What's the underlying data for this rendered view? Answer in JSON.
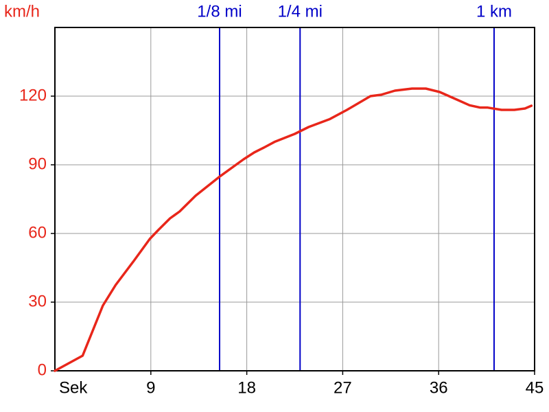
{
  "chart_data": {
    "type": "line",
    "ylabel": "km/h",
    "xlabel": "Sek",
    "xlim": [
      0,
      45
    ],
    "ylim": [
      0,
      150
    ],
    "xticks": [
      9,
      18,
      27,
      36,
      45
    ],
    "yticks": [
      0,
      30,
      60,
      90,
      120
    ],
    "grid": true,
    "series": [
      {
        "color": "#e8261a",
        "x": [
          0,
          2.6,
          4.5,
          5.7,
          7.4,
          8.9,
          9.7,
          10.8,
          11.7,
          13.2,
          15.5,
          17.7,
          18.7,
          19.6,
          20.6,
          22.5,
          23.8,
          25.8,
          27.4,
          29.6,
          30.6,
          31.9,
          33.5,
          34.8,
          36.1,
          37.7,
          38.9,
          39.9,
          40.6,
          41.9,
          43.1,
          44.1,
          44.7
        ],
        "values": [
          0,
          6.6,
          28.5,
          37.5,
          48,
          57.6,
          61.5,
          66.6,
          69.6,
          76.5,
          85,
          92.4,
          95.4,
          97.5,
          100,
          103.5,
          106.5,
          110,
          114,
          120,
          120.6,
          122.4,
          123.3,
          123.3,
          121.8,
          118.5,
          116,
          115,
          115,
          114,
          114,
          114.6,
          115.8
        ]
      }
    ],
    "markers_color": "#0000c8",
    "markers": [
      {
        "label": "1/8 mi",
        "x": 15.45
      },
      {
        "label": "1/4 mi",
        "x": 23.0
      },
      {
        "label": "1 km",
        "x": 41.2
      }
    ]
  }
}
